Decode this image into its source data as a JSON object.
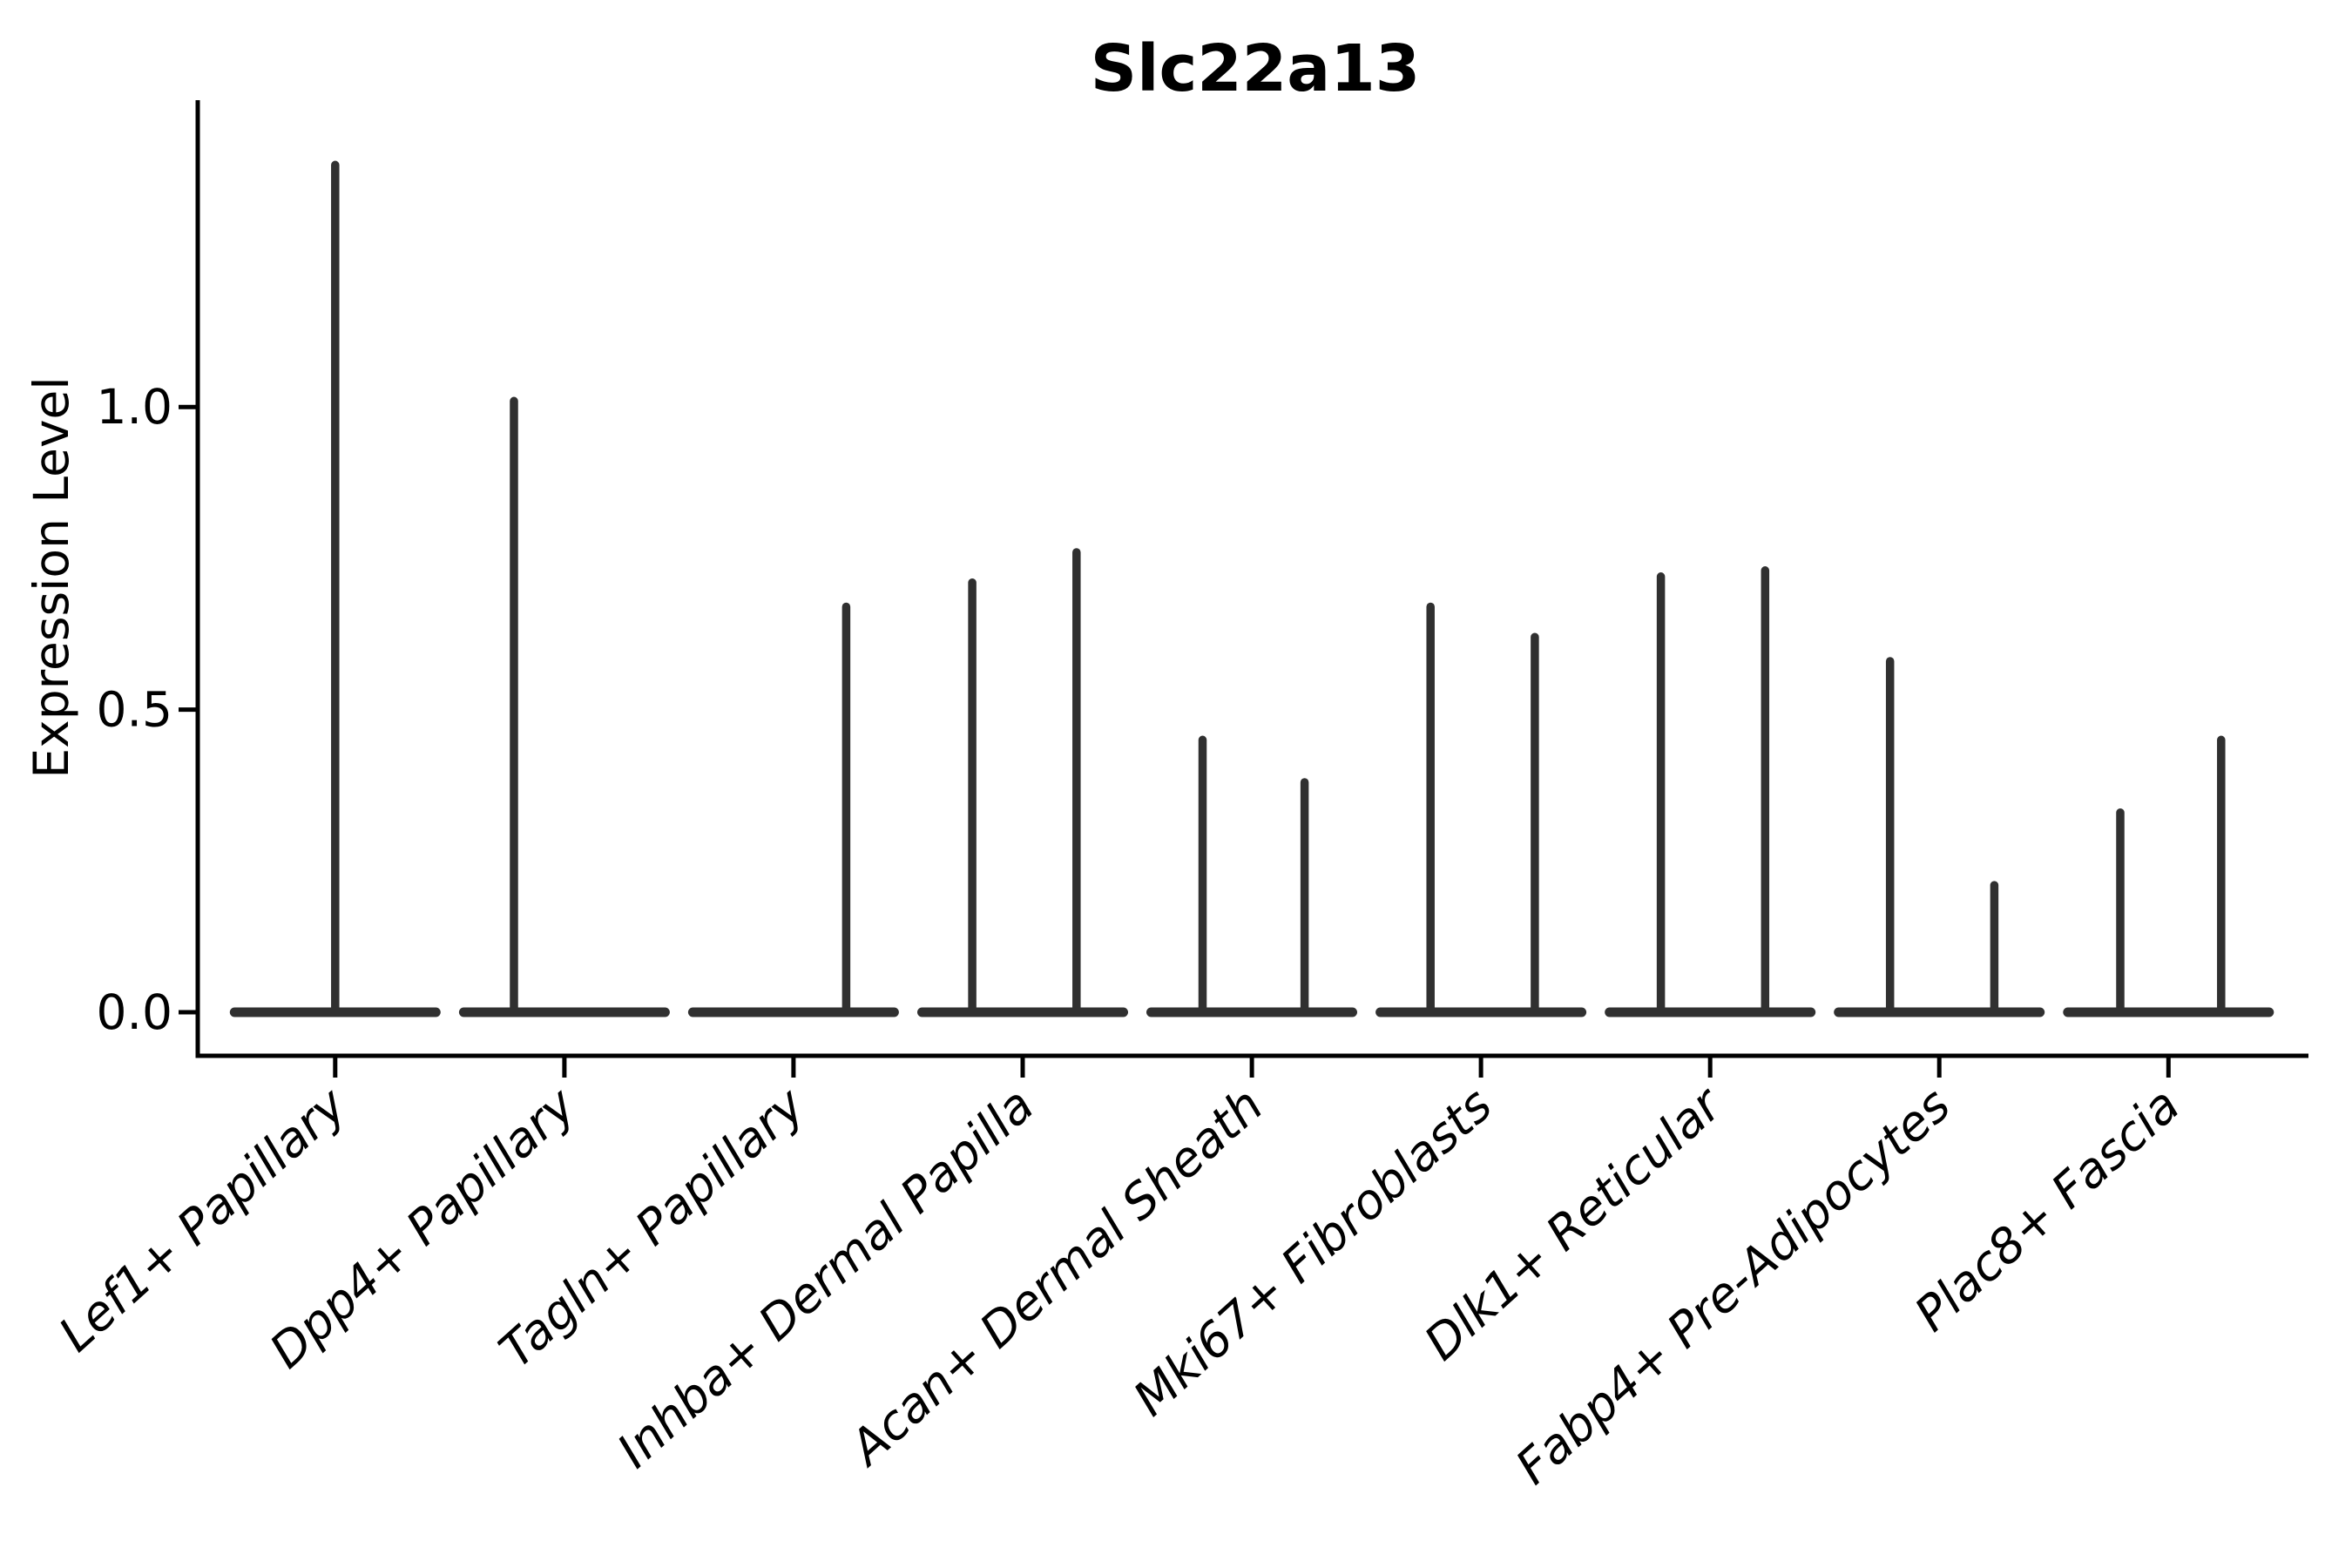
{
  "figure": {
    "background_color": "#ffffff",
    "axis_color": "#000000",
    "violin_color": "#303030"
  },
  "chart_data": {
    "type": "violin",
    "title": "Slc22a13",
    "xlabel": "",
    "ylabel": "Expression Level",
    "grid": false,
    "legend": null,
    "ytick_labels": [
      "0.0",
      "0.5",
      "1.0"
    ],
    "ytick_values": [
      0.0,
      0.5,
      1.0
    ],
    "ylim": [
      -0.072,
      1.507
    ],
    "xlim": [
      -0.6,
      8.63
    ],
    "x_label_rotation_deg": 42,
    "base_halfwidth": 0.46,
    "categories": [
      "Lef1+ Papillary",
      "Dpp4+ Papillary",
      "Tagln+ Papillary",
      "Inhba+ Dermal Papilla",
      "Acan+ Dermal Sheath",
      "Mki67+ Fibroblasts",
      "Dlk1+ Reticular",
      "Fabp4+ Pre-Adipocytes",
      "Plac8+ Fascia"
    ],
    "violins": [
      {
        "category": "Lef1+ Papillary",
        "spikes": [
          {
            "pos": 0.0,
            "value": 1.4
          }
        ]
      },
      {
        "category": "Dpp4+ Papillary",
        "spikes": [
          {
            "pos": -0.22,
            "value": 1.01
          }
        ]
      },
      {
        "category": "Tagln+ Papillary",
        "spikes": [
          {
            "pos": 0.23,
            "value": 0.67
          }
        ]
      },
      {
        "category": "Inhba+ Dermal Papilla",
        "spikes": [
          {
            "pos": -0.22,
            "value": 0.71
          },
          {
            "pos": 0.235,
            "value": 0.76
          }
        ]
      },
      {
        "category": "Acan+ Dermal Sheath",
        "spikes": [
          {
            "pos": -0.215,
            "value": 0.45
          },
          {
            "pos": 0.23,
            "value": 0.38
          }
        ]
      },
      {
        "category": "Mki67+ Fibroblasts",
        "spikes": [
          {
            "pos": -0.22,
            "value": 0.67
          },
          {
            "pos": 0.235,
            "value": 0.62
          }
        ]
      },
      {
        "category": "Dlk1+ Reticular",
        "spikes": [
          {
            "pos": -0.215,
            "value": 0.72
          },
          {
            "pos": 0.24,
            "value": 0.73
          }
        ]
      },
      {
        "category": "Fabp4+ Pre-Adipocytes",
        "spikes": [
          {
            "pos": -0.215,
            "value": 0.58
          },
          {
            "pos": 0.24,
            "value": 0.21
          }
        ]
      },
      {
        "category": "Plac8+ Fascia",
        "spikes": [
          {
            "pos": -0.21,
            "value": 0.33
          },
          {
            "pos": 0.23,
            "value": 0.45
          }
        ]
      }
    ]
  }
}
